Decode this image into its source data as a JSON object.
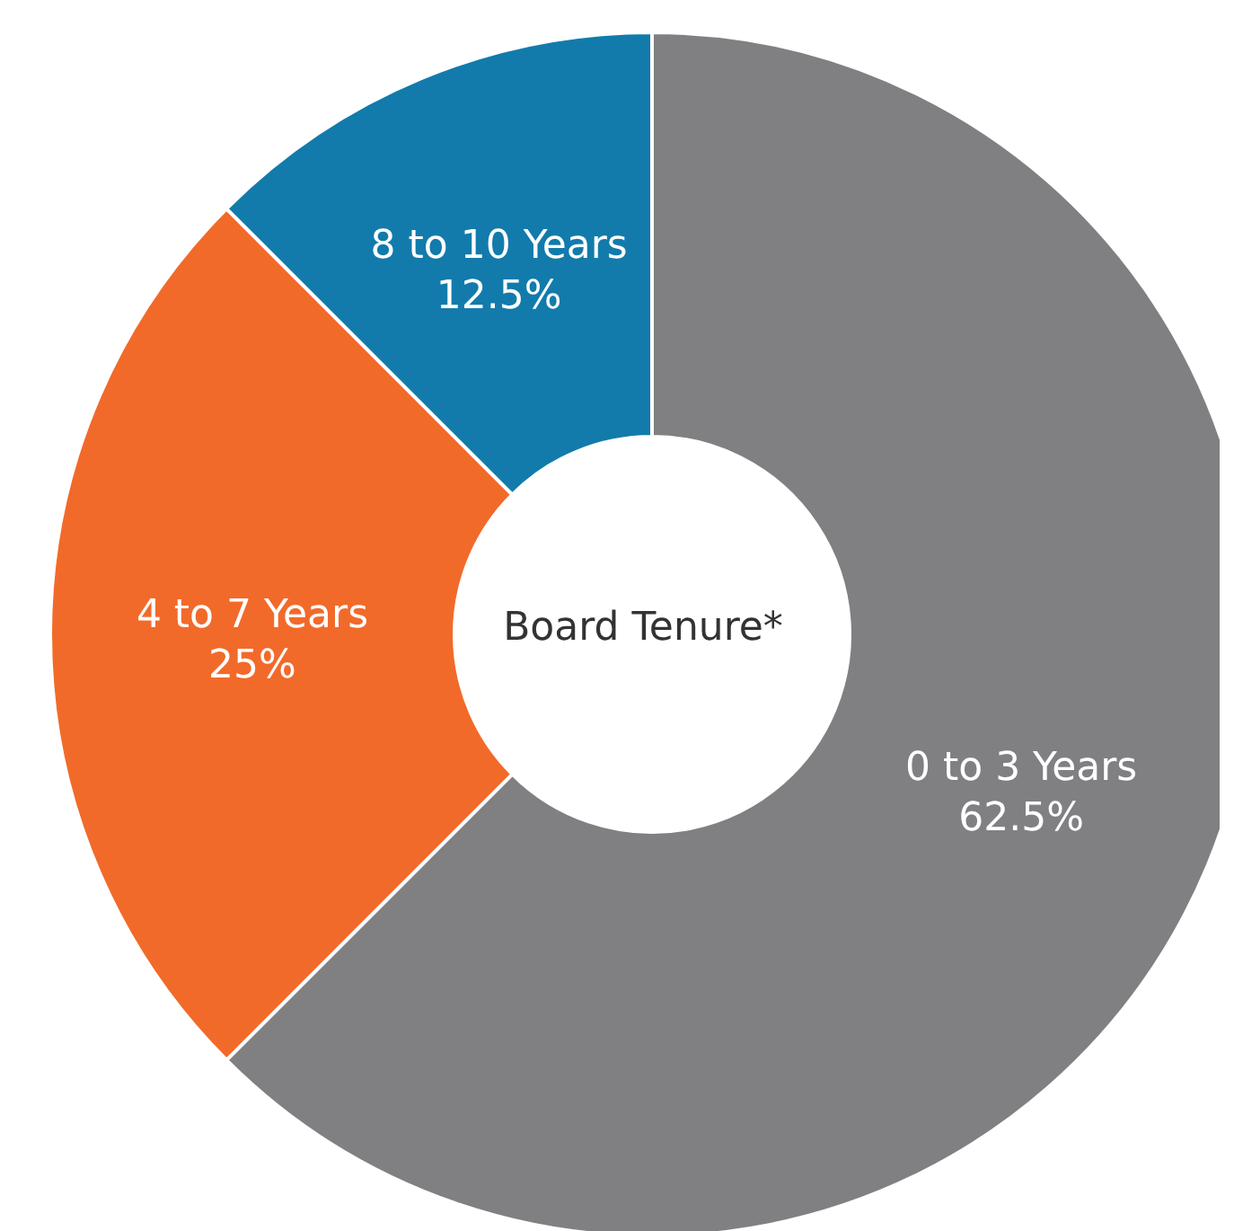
{
  "chart_data": {
    "type": "donut",
    "title": "Board Tenure*",
    "categories": [
      "0 to 3 Years",
      "4 to 7 Years",
      "8 to 10 Years"
    ],
    "values": [
      62.5,
      25,
      12.5
    ],
    "value_labels": [
      "62.5%",
      "25%",
      "12.5%"
    ],
    "colors": [
      "#808083",
      "#f26a2a",
      "#127bab"
    ],
    "legend": false
  }
}
